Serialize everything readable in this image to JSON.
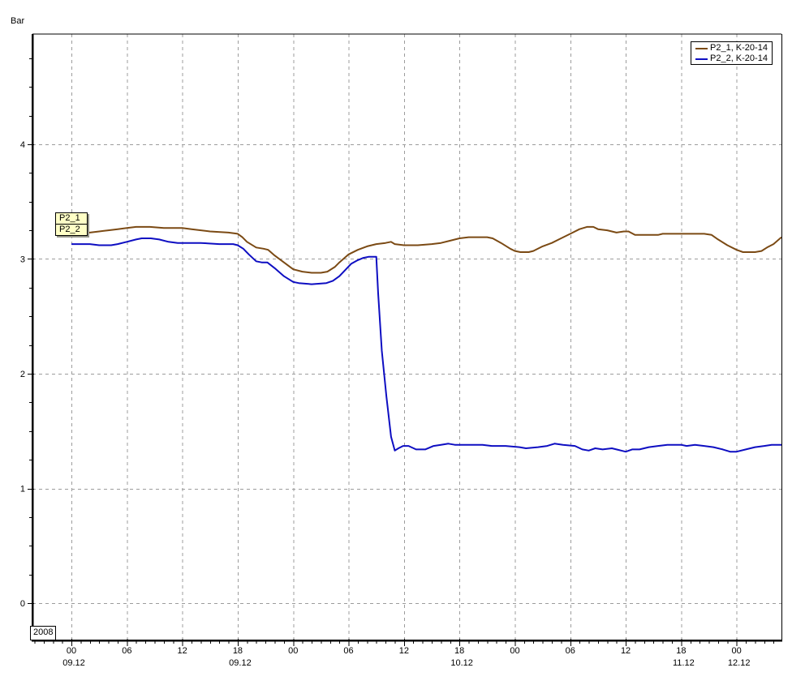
{
  "chart_data": {
    "type": "line",
    "title": "",
    "y_unit": "Bar",
    "year_label": "2008",
    "grid": {
      "color": "#9c9c9c",
      "dash": "4 4",
      "on": true
    },
    "x_axis": {
      "range_hours": [
        -4.22,
        76.86
      ],
      "hours_origin": "00:00 09.12.2008",
      "major_ticks": [
        {
          "t": 0,
          "label": "00"
        },
        {
          "t": 6,
          "label": "06"
        },
        {
          "t": 12,
          "label": "12"
        },
        {
          "t": 18,
          "label": "18"
        },
        {
          "t": 24,
          "label": "00"
        },
        {
          "t": 30,
          "label": "06"
        },
        {
          "t": 36,
          "label": "12"
        },
        {
          "t": 42,
          "label": "18"
        },
        {
          "t": 48,
          "label": "00"
        },
        {
          "t": 54,
          "label": "06"
        },
        {
          "t": 60,
          "label": "12"
        },
        {
          "t": 66,
          "label": "18"
        },
        {
          "t": 72,
          "label": "00"
        }
      ],
      "date_labels": [
        {
          "t": 0,
          "label": "09.12"
        },
        {
          "t": 18,
          "label": "09.12"
        },
        {
          "t": 42,
          "label": "10.12"
        },
        {
          "t": 66,
          "label": "11.12"
        },
        {
          "t": 72,
          "label": "12.12"
        }
      ],
      "minor_tick_step_hours": 1,
      "minor_tick_range": [
        -4,
        76
      ]
    },
    "y_axis": {
      "range": [
        -0.325,
        4.961
      ],
      "major_ticks": [
        {
          "v": 0,
          "label": "0"
        },
        {
          "v": 1,
          "label": "1"
        },
        {
          "v": 2,
          "label": "2"
        },
        {
          "v": 3,
          "label": "3"
        },
        {
          "v": 4,
          "label": "4"
        }
      ],
      "minor_tick_step": 0.25,
      "minor_tick_range": [
        0,
        4.75
      ]
    },
    "series": [
      {
        "name": "P2_1, K-20-14",
        "tag": "P2_1",
        "color": "#7b4a14",
        "points": [
          [
            0,
            3.23
          ],
          [
            2,
            3.23
          ],
          [
            3,
            3.24
          ],
          [
            4,
            3.25
          ],
          [
            5,
            3.26
          ],
          [
            6,
            3.27
          ],
          [
            7,
            3.28
          ],
          [
            8.5,
            3.28
          ],
          [
            10,
            3.27
          ],
          [
            12,
            3.27
          ],
          [
            13,
            3.26
          ],
          [
            15,
            3.24
          ],
          [
            17,
            3.23
          ],
          [
            18,
            3.22
          ],
          [
            18.5,
            3.19
          ],
          [
            19,
            3.15
          ],
          [
            20,
            3.1
          ],
          [
            20.8,
            3.09
          ],
          [
            21.3,
            3.08
          ],
          [
            22,
            3.03
          ],
          [
            23,
            2.97
          ],
          [
            24,
            2.91
          ],
          [
            25,
            2.89
          ],
          [
            26,
            2.88
          ],
          [
            27,
            2.88
          ],
          [
            27.7,
            2.89
          ],
          [
            28.5,
            2.93
          ],
          [
            29,
            2.97
          ],
          [
            30,
            3.04
          ],
          [
            31,
            3.08
          ],
          [
            32,
            3.11
          ],
          [
            33,
            3.13
          ],
          [
            34,
            3.14
          ],
          [
            34.6,
            3.15
          ],
          [
            35,
            3.13
          ],
          [
            36,
            3.12
          ],
          [
            37.5,
            3.12
          ],
          [
            39,
            3.13
          ],
          [
            40,
            3.14
          ],
          [
            41,
            3.16
          ],
          [
            42,
            3.18
          ],
          [
            43,
            3.19
          ],
          [
            45,
            3.19
          ],
          [
            45.6,
            3.18
          ],
          [
            46.5,
            3.14
          ],
          [
            47.5,
            3.09
          ],
          [
            48,
            3.07
          ],
          [
            48.6,
            3.06
          ],
          [
            49.5,
            3.06
          ],
          [
            50,
            3.07
          ],
          [
            51,
            3.11
          ],
          [
            52,
            3.14
          ],
          [
            53,
            3.18
          ],
          [
            54,
            3.22
          ],
          [
            55,
            3.26
          ],
          [
            55.8,
            3.28
          ],
          [
            56.5,
            3.28
          ],
          [
            57,
            3.26
          ],
          [
            58,
            3.25
          ],
          [
            59,
            3.23
          ],
          [
            59.8,
            3.24
          ],
          [
            60.3,
            3.24
          ],
          [
            61,
            3.21
          ],
          [
            62.5,
            3.21
          ],
          [
            63.5,
            3.21
          ],
          [
            64,
            3.22
          ],
          [
            68.5,
            3.22
          ],
          [
            69.3,
            3.21
          ],
          [
            70,
            3.17
          ],
          [
            71,
            3.12
          ],
          [
            72,
            3.08
          ],
          [
            72.7,
            3.06
          ],
          [
            74,
            3.06
          ],
          [
            74.7,
            3.07
          ],
          [
            75.3,
            3.1
          ],
          [
            76,
            3.13
          ],
          [
            76.86,
            3.19
          ]
        ]
      },
      {
        "name": "P2_2, K-20-14",
        "tag": "P2_2",
        "color": "#0e0ec2",
        "points": [
          [
            0,
            3.13
          ],
          [
            2,
            3.13
          ],
          [
            3,
            3.12
          ],
          [
            4.3,
            3.12
          ],
          [
            5,
            3.13
          ],
          [
            6,
            3.15
          ],
          [
            7,
            3.17
          ],
          [
            7.6,
            3.18
          ],
          [
            8.6,
            3.18
          ],
          [
            9.5,
            3.17
          ],
          [
            10.5,
            3.15
          ],
          [
            11.5,
            3.14
          ],
          [
            14,
            3.14
          ],
          [
            16,
            3.13
          ],
          [
            17.5,
            3.13
          ],
          [
            18,
            3.12
          ],
          [
            18.6,
            3.09
          ],
          [
            19.2,
            3.04
          ],
          [
            20,
            2.98
          ],
          [
            20.6,
            2.97
          ],
          [
            21.2,
            2.97
          ],
          [
            22,
            2.92
          ],
          [
            23,
            2.85
          ],
          [
            24,
            2.8
          ],
          [
            24.6,
            2.79
          ],
          [
            26,
            2.78
          ],
          [
            27.6,
            2.79
          ],
          [
            28.3,
            2.81
          ],
          [
            29,
            2.85
          ],
          [
            29.6,
            2.9
          ],
          [
            30.3,
            2.96
          ],
          [
            31,
            2.99
          ],
          [
            31.6,
            3.01
          ],
          [
            32.2,
            3.02
          ],
          [
            33.0,
            3.02
          ],
          [
            33.2,
            2.7
          ],
          [
            33.6,
            2.2
          ],
          [
            34.1,
            1.8
          ],
          [
            34.6,
            1.45
          ],
          [
            35.0,
            1.33
          ],
          [
            35.4,
            1.35
          ],
          [
            35.9,
            1.37
          ],
          [
            36.5,
            1.37
          ],
          [
            37.3,
            1.34
          ],
          [
            38.3,
            1.34
          ],
          [
            39.2,
            1.37
          ],
          [
            40,
            1.38
          ],
          [
            40.8,
            1.39
          ],
          [
            41.5,
            1.38
          ],
          [
            43,
            1.38
          ],
          [
            44.5,
            1.38
          ],
          [
            45.5,
            1.37
          ],
          [
            47,
            1.37
          ],
          [
            48.5,
            1.36
          ],
          [
            49.2,
            1.35
          ],
          [
            50.5,
            1.36
          ],
          [
            51.5,
            1.37
          ],
          [
            52.3,
            1.39
          ],
          [
            53.2,
            1.38
          ],
          [
            54.5,
            1.37
          ],
          [
            55.3,
            1.34
          ],
          [
            56,
            1.33
          ],
          [
            56.7,
            1.35
          ],
          [
            57.5,
            1.34
          ],
          [
            58.5,
            1.35
          ],
          [
            59.5,
            1.33
          ],
          [
            60,
            1.32
          ],
          [
            60.7,
            1.34
          ],
          [
            61.5,
            1.34
          ],
          [
            62.5,
            1.36
          ],
          [
            63.5,
            1.37
          ],
          [
            64.5,
            1.38
          ],
          [
            66,
            1.38
          ],
          [
            66.6,
            1.37
          ],
          [
            67.5,
            1.38
          ],
          [
            68.5,
            1.37
          ],
          [
            69.5,
            1.36
          ],
          [
            70.5,
            1.34
          ],
          [
            71.3,
            1.32
          ],
          [
            72,
            1.32
          ],
          [
            73,
            1.34
          ],
          [
            74,
            1.36
          ],
          [
            75,
            1.37
          ],
          [
            75.8,
            1.38
          ],
          [
            76.86,
            1.38
          ]
        ]
      }
    ]
  },
  "legend": {
    "items": [
      {
        "label": "P2_1, K-20-14",
        "color": "#7b4a14"
      },
      {
        "label": "P2_2, K-20-14",
        "color": "#0e0ec2"
      }
    ]
  }
}
